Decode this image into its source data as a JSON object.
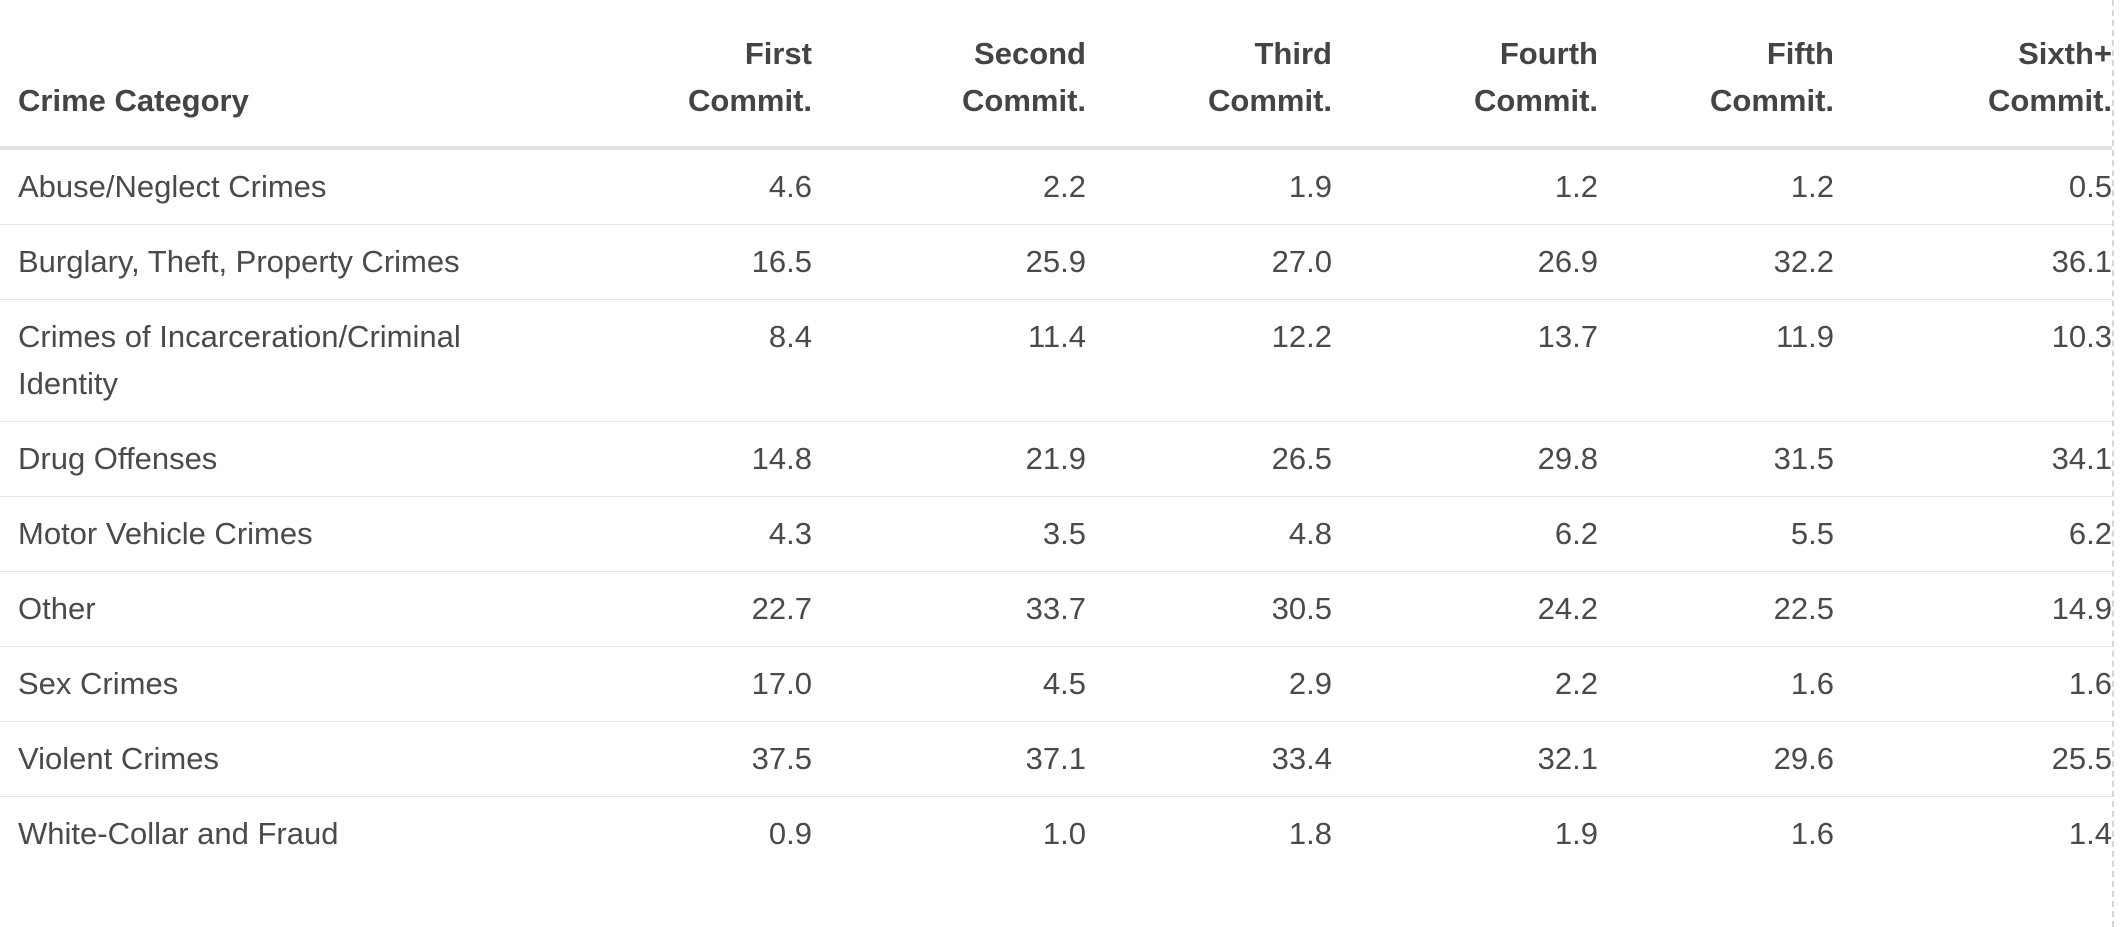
{
  "chart_data": {
    "type": "table",
    "columns": [
      "Crime Category",
      "First Commit.",
      "Second Commit.",
      "Third Commit.",
      "Fourth Commit.",
      "Fifth Commit.",
      "Sixth+ Commit."
    ],
    "header_lines": [
      [
        "",
        "Crime Category"
      ],
      [
        "First",
        "Commit."
      ],
      [
        "Second",
        "Commit."
      ],
      [
        "Third",
        "Commit."
      ],
      [
        "Fourth",
        "Commit."
      ],
      [
        "Fifth",
        "Commit."
      ],
      [
        "Sixth+",
        "Commit."
      ]
    ],
    "rows": [
      {
        "category": "Abuse/Neglect Crimes",
        "values": [
          "4.6",
          "2.2",
          "1.9",
          "1.2",
          "1.2",
          "0.5"
        ]
      },
      {
        "category": "Burglary, Theft, Property Crimes",
        "values": [
          "16.5",
          "25.9",
          "27.0",
          "26.9",
          "32.2",
          "36.1"
        ]
      },
      {
        "category": "Crimes of Incarceration/Criminal Identity",
        "values": [
          "8.4",
          "11.4",
          "12.2",
          "13.7",
          "11.9",
          "10.3"
        ]
      },
      {
        "category": "Drug Offenses",
        "values": [
          "14.8",
          "21.9",
          "26.5",
          "29.8",
          "31.5",
          "34.1"
        ]
      },
      {
        "category": "Motor Vehicle Crimes",
        "values": [
          "4.3",
          "3.5",
          "4.8",
          "6.2",
          "5.5",
          "6.2"
        ]
      },
      {
        "category": "Other",
        "values": [
          "22.7",
          "33.7",
          "30.5",
          "24.2",
          "22.5",
          "14.9"
        ]
      },
      {
        "category": "Sex Crimes",
        "values": [
          "17.0",
          "4.5",
          "2.9",
          "2.2",
          "1.6",
          "1.6"
        ]
      },
      {
        "category": "Violent Crimes",
        "values": [
          "37.5",
          "37.1",
          "33.4",
          "32.1",
          "29.6",
          "25.5"
        ]
      },
      {
        "category": "White-Collar and Fraud",
        "values": [
          "0.9",
          "1.0",
          "1.8",
          "1.9",
          "1.6",
          "1.4"
        ]
      }
    ]
  }
}
